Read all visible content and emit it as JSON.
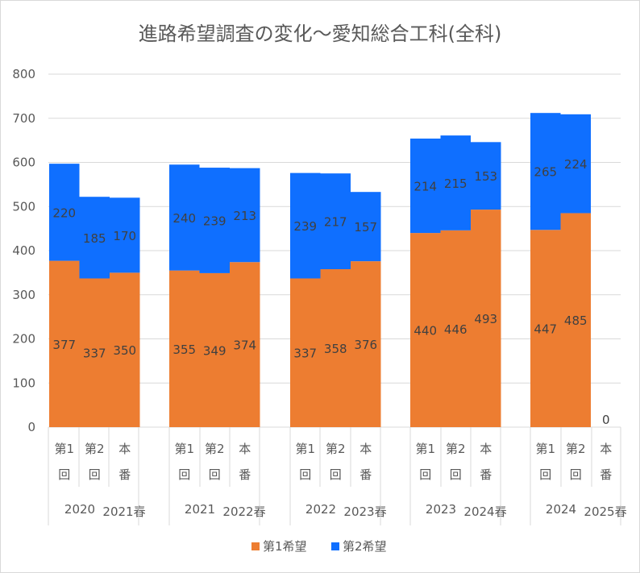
{
  "chart_data": {
    "type": "bar",
    "stacked": true,
    "title": "進路希望調査の変化～愛知総合工科(全科)",
    "xlabel": "",
    "ylabel": "",
    "ylim": [
      0,
      800
    ],
    "yticks": [
      0,
      100,
      200,
      300,
      400,
      500,
      600,
      700,
      800
    ],
    "grid": true,
    "legend_position": "bottom",
    "groups": [
      {
        "year": "2020",
        "season": "2021春",
        "bars": [
          {
            "label": [
              "第1",
              "回"
            ],
            "values": [
              377,
              220
            ]
          },
          {
            "label": [
              "第2",
              "回"
            ],
            "values": [
              337,
              185
            ]
          },
          {
            "label": [
              "本",
              "番"
            ],
            "values": [
              350,
              170
            ]
          }
        ]
      },
      {
        "year": "2021",
        "season": "2022春",
        "bars": [
          {
            "label": [
              "第1",
              "回"
            ],
            "values": [
              355,
              240
            ]
          },
          {
            "label": [
              "第2",
              "回"
            ],
            "values": [
              349,
              239
            ]
          },
          {
            "label": [
              "本",
              "番"
            ],
            "values": [
              374,
              213
            ]
          }
        ]
      },
      {
        "year": "2022",
        "season": "2023春",
        "bars": [
          {
            "label": [
              "第1",
              "回"
            ],
            "values": [
              337,
              239
            ]
          },
          {
            "label": [
              "第2",
              "回"
            ],
            "values": [
              358,
              217
            ]
          },
          {
            "label": [
              "本",
              "番"
            ],
            "values": [
              376,
              157
            ]
          }
        ]
      },
      {
        "year": "2023",
        "season": "2024春",
        "bars": [
          {
            "label": [
              "第1",
              "回"
            ],
            "values": [
              440,
              214
            ]
          },
          {
            "label": [
              "第2",
              "回"
            ],
            "values": [
              446,
              215
            ]
          },
          {
            "label": [
              "本",
              "番"
            ],
            "values": [
              493,
              153
            ]
          }
        ]
      },
      {
        "year": "2024",
        "season": "2025春",
        "bars": [
          {
            "label": [
              "第1",
              "回"
            ],
            "values": [
              447,
              265
            ]
          },
          {
            "label": [
              "第2",
              "回"
            ],
            "values": [
              485,
              224
            ]
          },
          {
            "label": [
              "本",
              "番"
            ],
            "values": [
              0,
              null
            ]
          }
        ]
      }
    ],
    "series": [
      {
        "name": "第1希望",
        "color": "#ED7D31"
      },
      {
        "name": "第2希望",
        "color": "#0F6FFF"
      }
    ]
  }
}
